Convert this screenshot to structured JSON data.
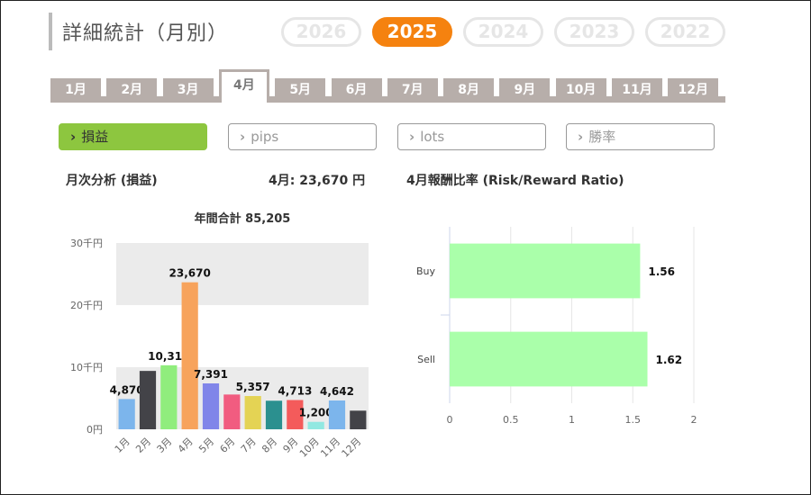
{
  "page_title": "詳細統計（月別）",
  "years": [
    {
      "label": "2026",
      "active": false
    },
    {
      "label": "2025",
      "active": true
    },
    {
      "label": "2024",
      "active": false
    },
    {
      "label": "2023",
      "active": false
    },
    {
      "label": "2022",
      "active": false
    }
  ],
  "months": [
    "1月",
    "2月",
    "3月",
    "4月",
    "5月",
    "6月",
    "7月",
    "8月",
    "9月",
    "10月",
    "11月",
    "12月"
  ],
  "active_month": "4月",
  "metrics": [
    {
      "label": "損益",
      "active": true
    },
    {
      "label": "pips",
      "active": false
    },
    {
      "label": "lots",
      "active": false
    },
    {
      "label": "勝率",
      "active": false
    }
  ],
  "monthly_section": {
    "title": "月次分析 (損益)",
    "month_summary": "4月:  23,670 円"
  },
  "ratio_section": {
    "title": "4月報酬比率 (Risk/Reward Ratio)"
  },
  "colors": {
    "accent_orange": "#f5820f",
    "accent_green": "#8dc63f",
    "tab_gray": "#b7aeaa",
    "ratio_bar": "#aaffaa"
  },
  "chart_data": [
    {
      "type": "bar",
      "title": "年間合計 85,205",
      "categories": [
        "1月",
        "2月",
        "3月",
        "4月",
        "5月",
        "6月",
        "7月",
        "8月",
        "9月",
        "10月",
        "11月",
        "12月"
      ],
      "values": [
        4870,
        9400,
        10311,
        23670,
        7391,
        5600,
        5357,
        4600,
        4713,
        1200,
        4642,
        3000
      ],
      "data_labels": [
        "4,870",
        "",
        "10,311",
        "23,670",
        "7,391",
        "",
        "5,357",
        "",
        "4,713",
        "1,200",
        "4,642",
        ""
      ],
      "colors": [
        "#7cb5ec",
        "#434348",
        "#90ed7d",
        "#f7a35c",
        "#8085e9",
        "#f15c80",
        "#e4d354",
        "#2b908f",
        "#f45b5b",
        "#91e8e1",
        "#7cb5ec",
        "#434348"
      ],
      "ylim": [
        0,
        30000
      ],
      "ytick_labels": [
        "0円",
        "10千円",
        "20千円",
        "30千円"
      ],
      "bands": [
        [
          0,
          10000
        ],
        [
          20000,
          30000
        ]
      ],
      "xlabel": "",
      "ylabel": ""
    },
    {
      "type": "bar",
      "orientation": "horizontal",
      "title": "",
      "categories": [
        "Buy",
        "Sell"
      ],
      "values": [
        1.56,
        1.62
      ],
      "data_labels": [
        "1.56",
        "1.62"
      ],
      "xlim": [
        0,
        2
      ],
      "xtick_labels": [
        "0",
        "0.5",
        "1",
        "1.5",
        "2"
      ],
      "grid": true,
      "xlabel": "",
      "ylabel": ""
    }
  ]
}
